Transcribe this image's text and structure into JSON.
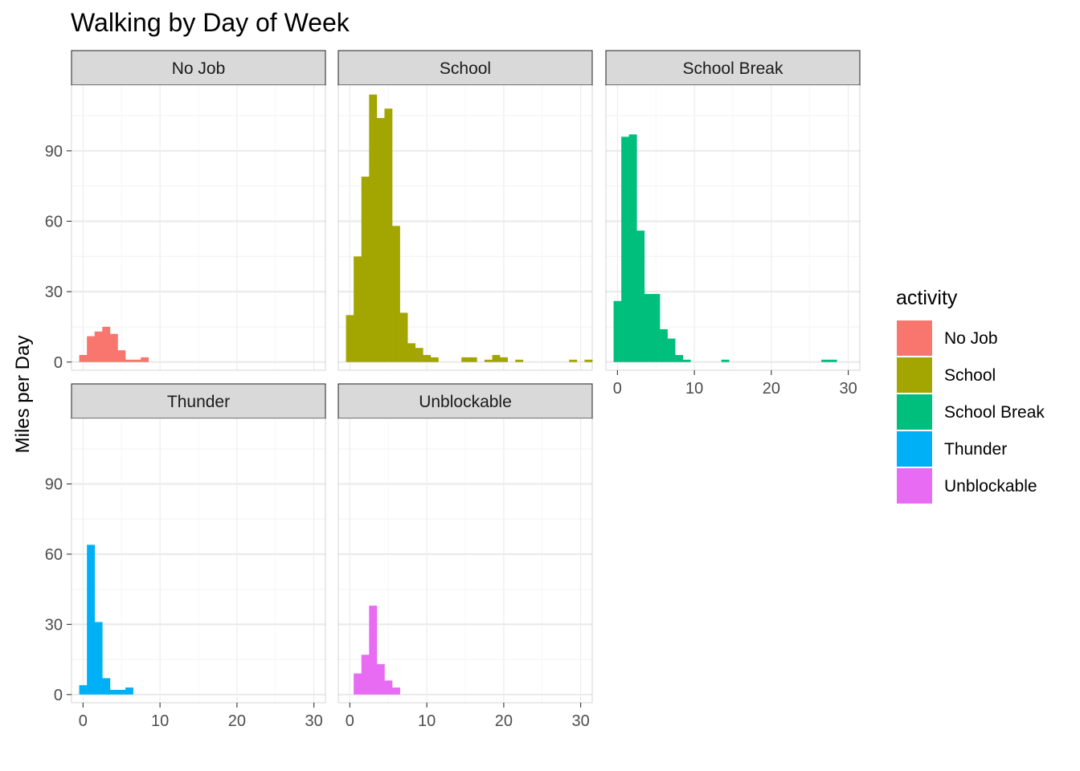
{
  "chart_data": {
    "type": "bar",
    "subtype": "faceted-histogram",
    "title": "Walking by Day of Week",
    "xlabel": "",
    "ylabel": "Miles per Day",
    "xlim": [
      -1.5,
      31.5
    ],
    "ylim": [
      -3.5,
      118
    ],
    "x_ticks": [
      0,
      10,
      20,
      30
    ],
    "y_ticks": [
      0,
      30,
      60,
      90
    ],
    "bin_width": 1,
    "bins_start": -0.5,
    "legend": {
      "title": "activity",
      "position": "right",
      "entries": [
        "No Job",
        "School",
        "School Break",
        "Thunder",
        "Unblockable"
      ]
    },
    "series": [
      {
        "name": "No Job",
        "color": "#F8766D",
        "values": [
          3,
          11,
          13,
          15,
          12,
          5,
          1,
          1,
          2,
          0,
          0,
          0,
          0,
          0,
          0,
          0,
          0,
          0,
          0,
          0,
          0,
          0,
          0,
          0,
          0,
          0,
          0,
          0,
          0,
          0,
          0,
          0
        ]
      },
      {
        "name": "School",
        "color": "#A3A500",
        "values": [
          20,
          45,
          79,
          114,
          104,
          108,
          58,
          21,
          8,
          6,
          3,
          2,
          0,
          0,
          0,
          2,
          2,
          0,
          1,
          3,
          2,
          0,
          1,
          0,
          0,
          0,
          0,
          0,
          0,
          1,
          0,
          1
        ]
      },
      {
        "name": "School Break",
        "color": "#00BF7D",
        "values": [
          26,
          96,
          97,
          56,
          29,
          29,
          14,
          10,
          3,
          1,
          0,
          0,
          0,
          0,
          1,
          0,
          0,
          0,
          0,
          0,
          0,
          0,
          0,
          0,
          0,
          0,
          0,
          1,
          1,
          0,
          0,
          0
        ]
      },
      {
        "name": "Thunder",
        "color": "#00B0F6",
        "values": [
          4,
          64,
          31,
          7,
          2,
          2,
          3,
          0,
          0,
          0,
          0,
          0,
          0,
          0,
          0,
          0,
          0,
          0,
          0,
          0,
          0,
          0,
          0,
          0,
          0,
          0,
          0,
          0,
          0,
          0,
          0,
          0
        ]
      },
      {
        "name": "Unblockable",
        "color": "#E76BF3",
        "values": [
          0,
          9,
          17,
          38,
          13,
          6,
          3,
          0,
          0,
          0,
          0,
          0,
          0,
          0,
          0,
          0,
          0,
          0,
          0,
          0,
          0,
          0,
          0,
          0,
          0,
          0,
          0,
          0,
          0,
          0,
          0,
          0
        ]
      }
    ]
  }
}
